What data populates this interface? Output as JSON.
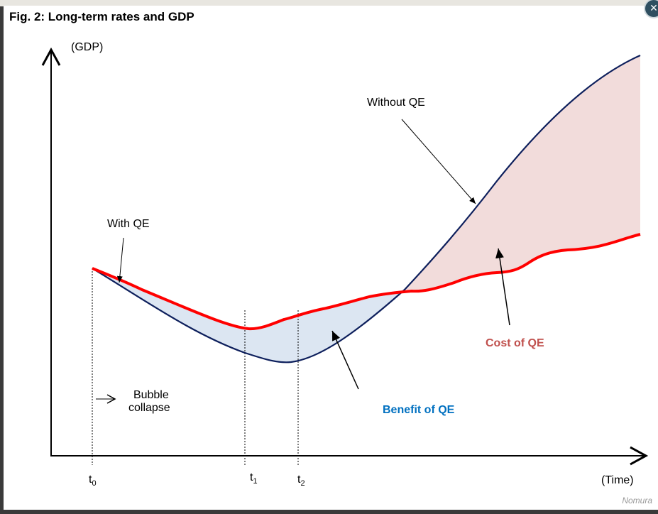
{
  "figure": {
    "title": "Fig. 2: Long-term rates and GDP",
    "y_axis_label": "(GDP)",
    "x_axis_label": "(Time)",
    "credit": "Nomura",
    "close_icon": "close-icon",
    "time_markers": [
      {
        "base": "t",
        "sub": "0"
      },
      {
        "base": "t",
        "sub": "1"
      },
      {
        "base": "t",
        "sub": "2"
      }
    ],
    "annotations": {
      "without_qe": "Without QE",
      "with_qe": "With QE",
      "bubble_line1": "Bubble",
      "bubble_line2": "collapse",
      "benefit": "Benefit of QE",
      "cost": "Cost of QE"
    },
    "colors": {
      "without_qe_line": "#0d1f5c",
      "with_qe_line": "#ff0000",
      "benefit_fill": "#dce6f2",
      "cost_fill": "#f2dcdb",
      "benefit_text": "#0070c0",
      "cost_text": "#c0504d"
    }
  }
}
